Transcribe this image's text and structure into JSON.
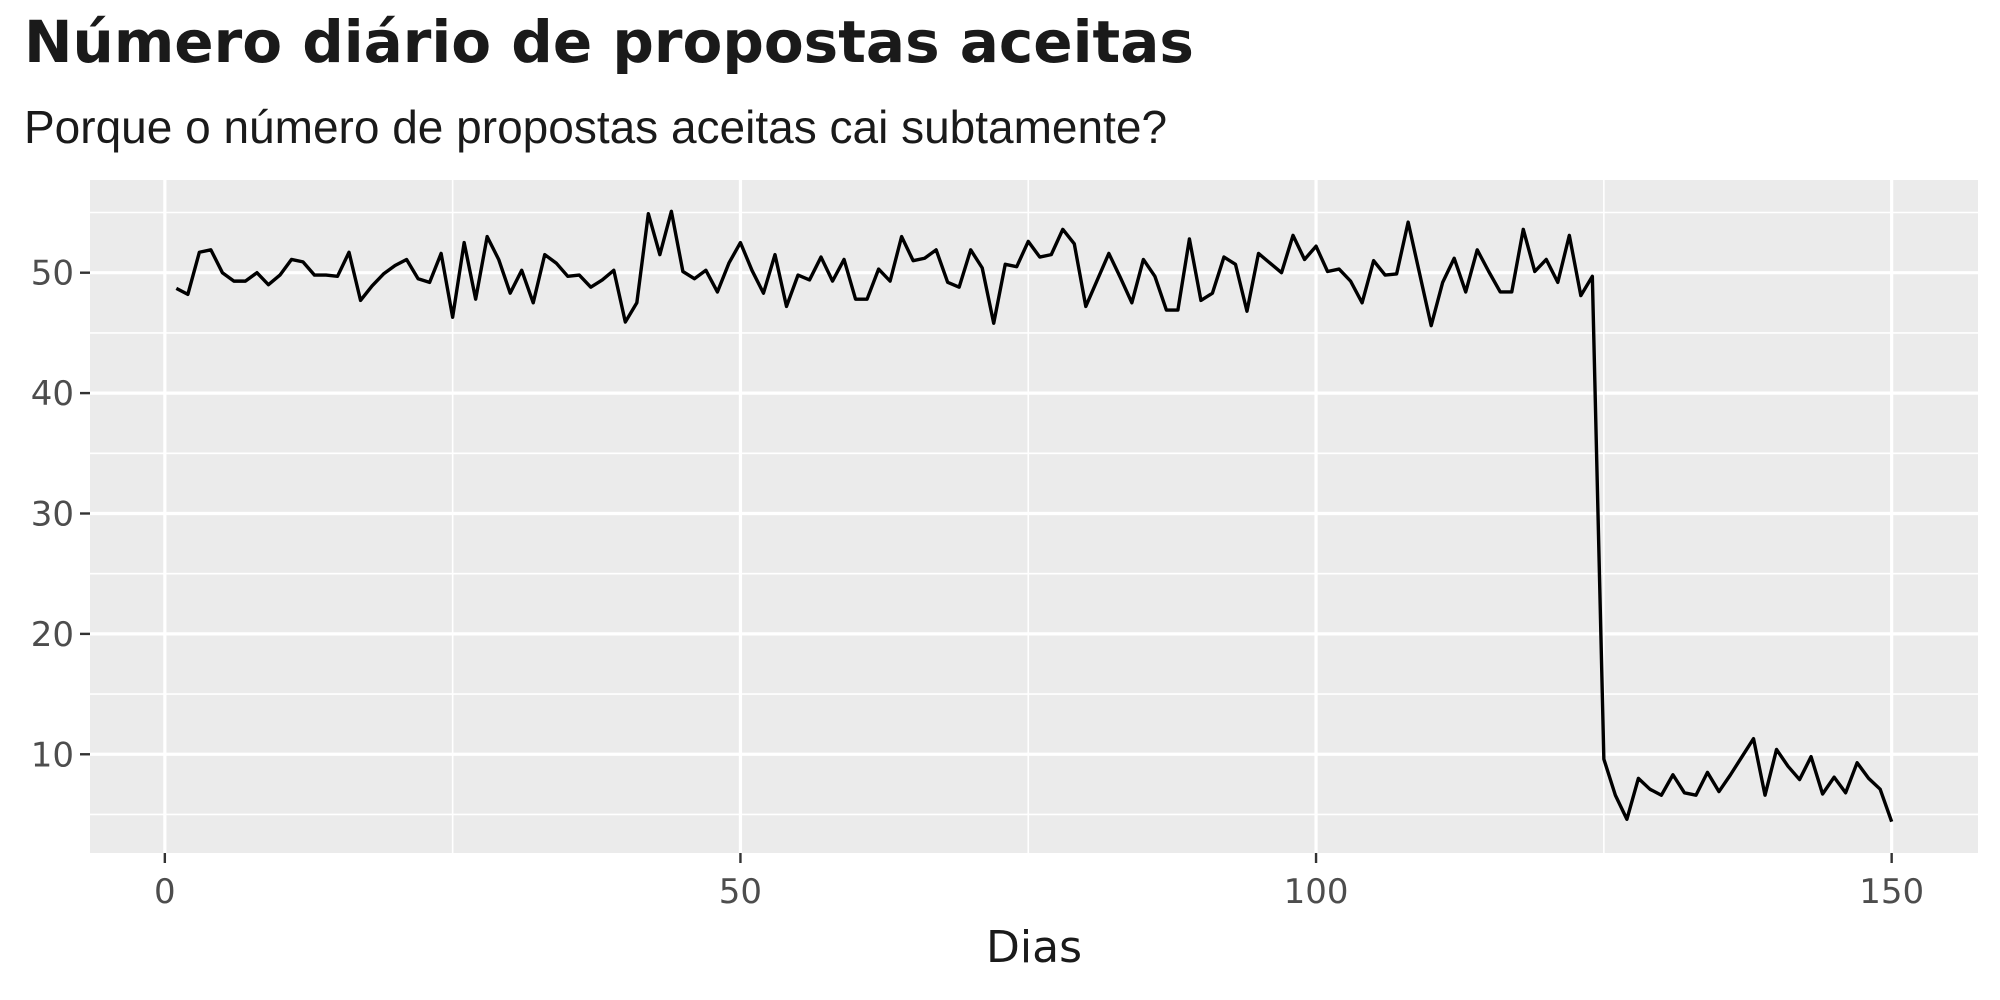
{
  "chart_data": {
    "type": "line",
    "title": "Número diário de propostas aceitas",
    "subtitle": "Porque o número de propostas aceitas cai subtamente?",
    "xlabel": "Dias",
    "ylabel": "",
    "xlim": [
      -6.5,
      157.5
    ],
    "ylim": [
      1.8,
      57.7
    ],
    "x_ticks": [
      0,
      50,
      100,
      150
    ],
    "x_tick_labels": [
      "0",
      "50",
      "100",
      "150"
    ],
    "y_ticks": [
      10,
      20,
      30,
      40,
      50
    ],
    "y_tick_labels": [
      "10",
      "20",
      "30",
      "40",
      "50"
    ],
    "grid": true,
    "line_color": "#000000",
    "panel_background": "#ebebeb",
    "series": [
      {
        "x": [
          1,
          2,
          3,
          4,
          5,
          6,
          7,
          8,
          9,
          10,
          11,
          12,
          13,
          14,
          15,
          16,
          17,
          18,
          19,
          20,
          21,
          22,
          23,
          24,
          25,
          26,
          27,
          28,
          29,
          30,
          31,
          32,
          33,
          34,
          35,
          36,
          37,
          38,
          39,
          40,
          41,
          42,
          43,
          44,
          45,
          46,
          47,
          48,
          49,
          50,
          51,
          52,
          53,
          54,
          55,
          56,
          57,
          58,
          59,
          60,
          61,
          62,
          63,
          64,
          65,
          66,
          67,
          68,
          69,
          70,
          71,
          72,
          73,
          74,
          75,
          76,
          77,
          78,
          79,
          80,
          81,
          82,
          83,
          84,
          85,
          86,
          87,
          88,
          89,
          90,
          91,
          92,
          93,
          94,
          95,
          96,
          97,
          98,
          99,
          100,
          101,
          102,
          103,
          104,
          105,
          106,
          107,
          108,
          109,
          110,
          111,
          112,
          113,
          114,
          115,
          116,
          117,
          118,
          119,
          120,
          121,
          122,
          123,
          124,
          125,
          126,
          127,
          128,
          129,
          130,
          131,
          132,
          133,
          134,
          135,
          136,
          137,
          138,
          139,
          140,
          141,
          142,
          143,
          144,
          145,
          146,
          147,
          148,
          149,
          150
        ],
        "values": [
          48.7,
          48.2,
          51.7,
          51.9,
          50.0,
          49.3,
          49.3,
          50.0,
          49.0,
          49.8,
          51.1,
          50.9,
          49.8,
          49.8,
          49.7,
          51.7,
          47.7,
          48.9,
          49.9,
          50.6,
          51.1,
          49.5,
          49.2,
          51.6,
          46.3,
          52.5,
          47.8,
          53.0,
          51.1,
          48.3,
          50.2,
          47.5,
          51.5,
          50.8,
          49.7,
          49.8,
          48.8,
          49.4,
          50.2,
          45.9,
          47.5,
          54.9,
          51.5,
          55.1,
          50.1,
          49.5,
          50.2,
          48.4,
          50.8,
          52.5,
          50.2,
          48.3,
          51.5,
          47.2,
          49.8,
          49.4,
          51.3,
          49.3,
          51.1,
          47.8,
          47.8,
          50.3,
          49.3,
          53.0,
          51.0,
          51.2,
          51.9,
          49.2,
          48.8,
          51.9,
          50.4,
          45.8,
          50.7,
          50.5,
          52.6,
          51.3,
          51.5,
          53.6,
          52.4,
          47.2,
          49.4,
          51.6,
          49.6,
          47.5,
          51.1,
          49.7,
          46.9,
          46.9,
          52.8,
          47.7,
          48.3,
          51.3,
          50.7,
          46.8,
          51.6,
          50.8,
          50.0,
          53.1,
          51.1,
          52.2,
          50.1,
          50.3,
          49.3,
          47.5,
          51.0,
          49.8,
          49.9,
          54.2,
          49.9,
          45.6,
          49.2,
          51.2,
          48.4,
          51.9,
          50.1,
          48.4,
          48.4,
          53.6,
          50.1,
          51.1,
          49.2,
          53.1,
          48.1,
          49.7,
          9.6,
          6.6,
          4.6,
          8.0,
          7.1,
          6.6,
          8.3,
          6.8,
          6.6,
          8.5,
          6.9,
          8.3,
          9.8,
          11.3,
          6.6,
          10.4,
          9.0,
          7.9,
          9.8,
          6.7,
          8.1,
          6.8,
          9.3,
          8.0,
          7.1,
          4.4
        ]
      }
    ]
  }
}
